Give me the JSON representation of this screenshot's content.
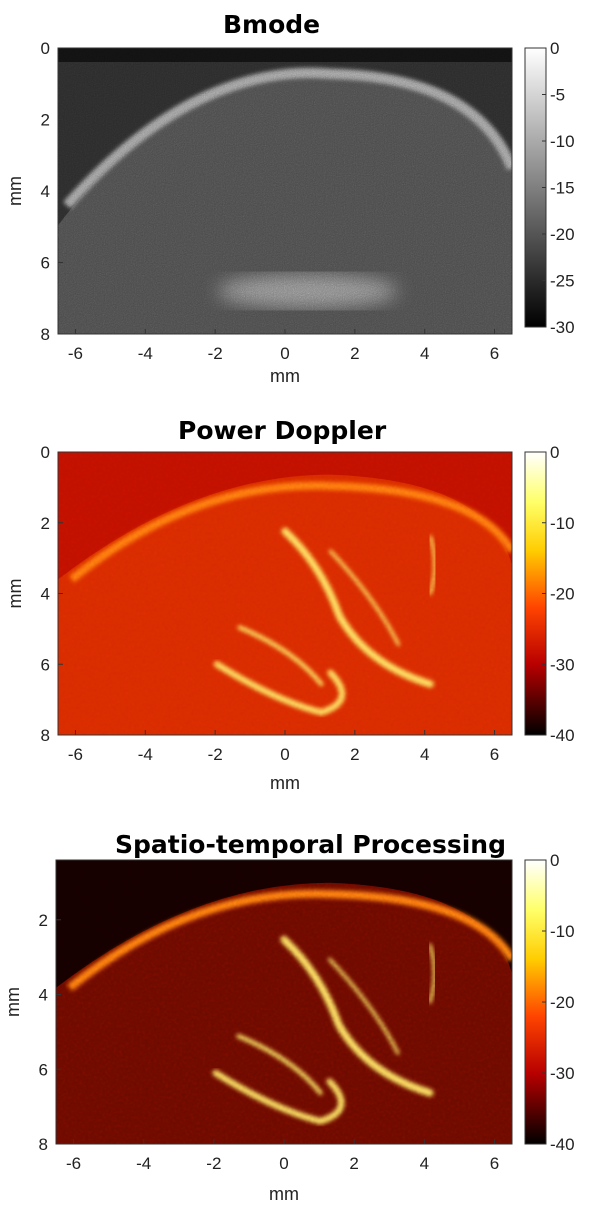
{
  "chart_data": [
    {
      "type": "heatmap",
      "title": "Bmode",
      "xlabel": "mm",
      "ylabel": "mm",
      "xlim": [
        -6.5,
        6.5
      ],
      "ylim": [
        8,
        0
      ],
      "x_ticks": [
        -6,
        -4,
        -2,
        0,
        2,
        4,
        6
      ],
      "y_ticks": [
        0,
        2,
        4,
        6,
        8
      ],
      "colorbar": {
        "range": [
          -30,
          0
        ],
        "ticks": [
          0,
          -5,
          -10,
          -15,
          -20,
          -25,
          -30
        ],
        "colormap": "gray"
      },
      "grid": false
    },
    {
      "type": "heatmap",
      "title": "Power Doppler",
      "xlabel": "mm",
      "ylabel": "mm",
      "xlim": [
        -6.5,
        6.5
      ],
      "ylim": [
        8,
        0
      ],
      "x_ticks": [
        -6,
        -4,
        -2,
        0,
        2,
        4,
        6
      ],
      "y_ticks": [
        0,
        2,
        4,
        6,
        8
      ],
      "colorbar": {
        "range": [
          -40,
          0
        ],
        "ticks": [
          0,
          -10,
          -20,
          -30,
          -40
        ],
        "colormap": "hot"
      },
      "grid": false
    },
    {
      "type": "heatmap",
      "title": "Spatio-temporal Processing",
      "xlabel": "mm",
      "ylabel": "mm",
      "xlim": [
        -6.5,
        6.5
      ],
      "ylim": [
        8,
        0.4
      ],
      "x_ticks": [
        -6,
        -4,
        -2,
        0,
        2,
        4,
        6
      ],
      "y_ticks": [
        2,
        4,
        6,
        8
      ],
      "colorbar": {
        "range": [
          -40,
          0
        ],
        "ticks": [
          0,
          -10,
          -20,
          -30,
          -40
        ],
        "colormap": "hot"
      },
      "grid": false
    }
  ]
}
